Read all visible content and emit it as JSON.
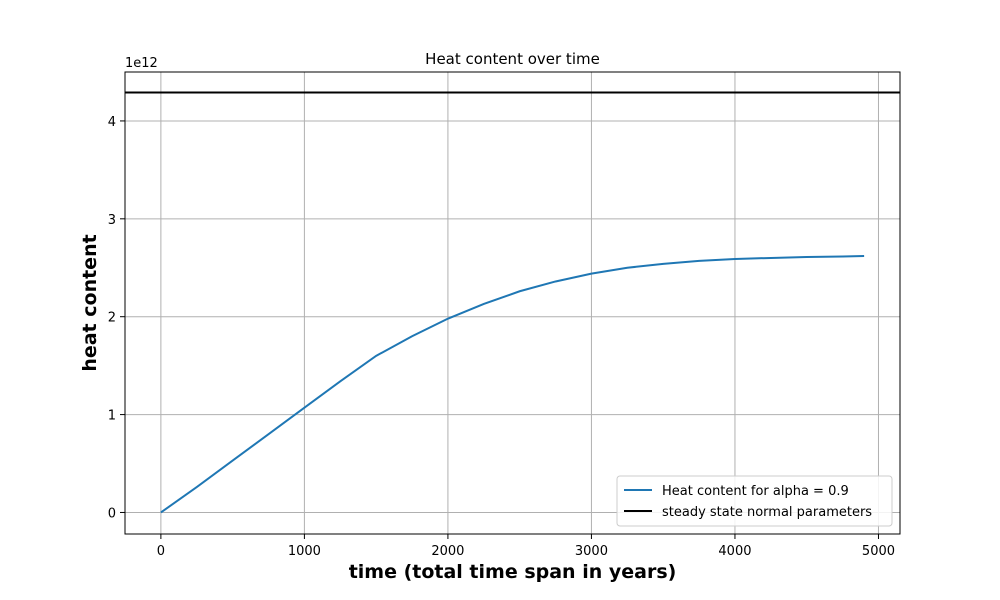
{
  "chart_data": {
    "type": "line",
    "title": "Heat content over time",
    "xlabel": "time (total time span in years)",
    "ylabel": "heat content",
    "y_offset_label": "1e12",
    "y_scale_factor": 1000000000000.0,
    "xlim": [
      -250,
      5150
    ],
    "ylim": [
      -220000000000.0,
      4500000000000.0
    ],
    "x_ticks": [
      0,
      1000,
      2000,
      3000,
      4000,
      5000
    ],
    "y_ticks": [
      0,
      1000000000000.0,
      2000000000000.0,
      3000000000000.0,
      4000000000000.0
    ],
    "x_tick_labels": [
      "0",
      "1000",
      "2000",
      "3000",
      "4000",
      "5000"
    ],
    "y_tick_labels": [
      "0",
      "1",
      "2",
      "3",
      "4"
    ],
    "grid": true,
    "legend_position": "lower-right",
    "series": [
      {
        "name": "Heat content for alpha = 0.9",
        "color": "#1f77b4",
        "x": [
          0,
          250,
          500,
          750,
          1000,
          1250,
          1500,
          1750,
          2000,
          2250,
          2500,
          2750,
          3000,
          3250,
          3500,
          3750,
          4000,
          4250,
          4500,
          4750,
          4900
        ],
        "y": [
          0,
          260000000000.0,
          530000000000.0,
          800000000000.0,
          1070000000000.0,
          1340000000000.0,
          1600000000000.0,
          1800000000000.0,
          1980000000000.0,
          2130000000000.0,
          2260000000000.0,
          2360000000000.0,
          2440000000000.0,
          2500000000000.0,
          2540000000000.0,
          2570000000000.0,
          2590000000000.0,
          2600000000000.0,
          2610000000000.0,
          2615000000000.0,
          2620000000000.0
        ]
      },
      {
        "name": "steady state normal parameters",
        "color": "#000000",
        "type": "hline",
        "y": 4290000000000.0
      }
    ]
  }
}
